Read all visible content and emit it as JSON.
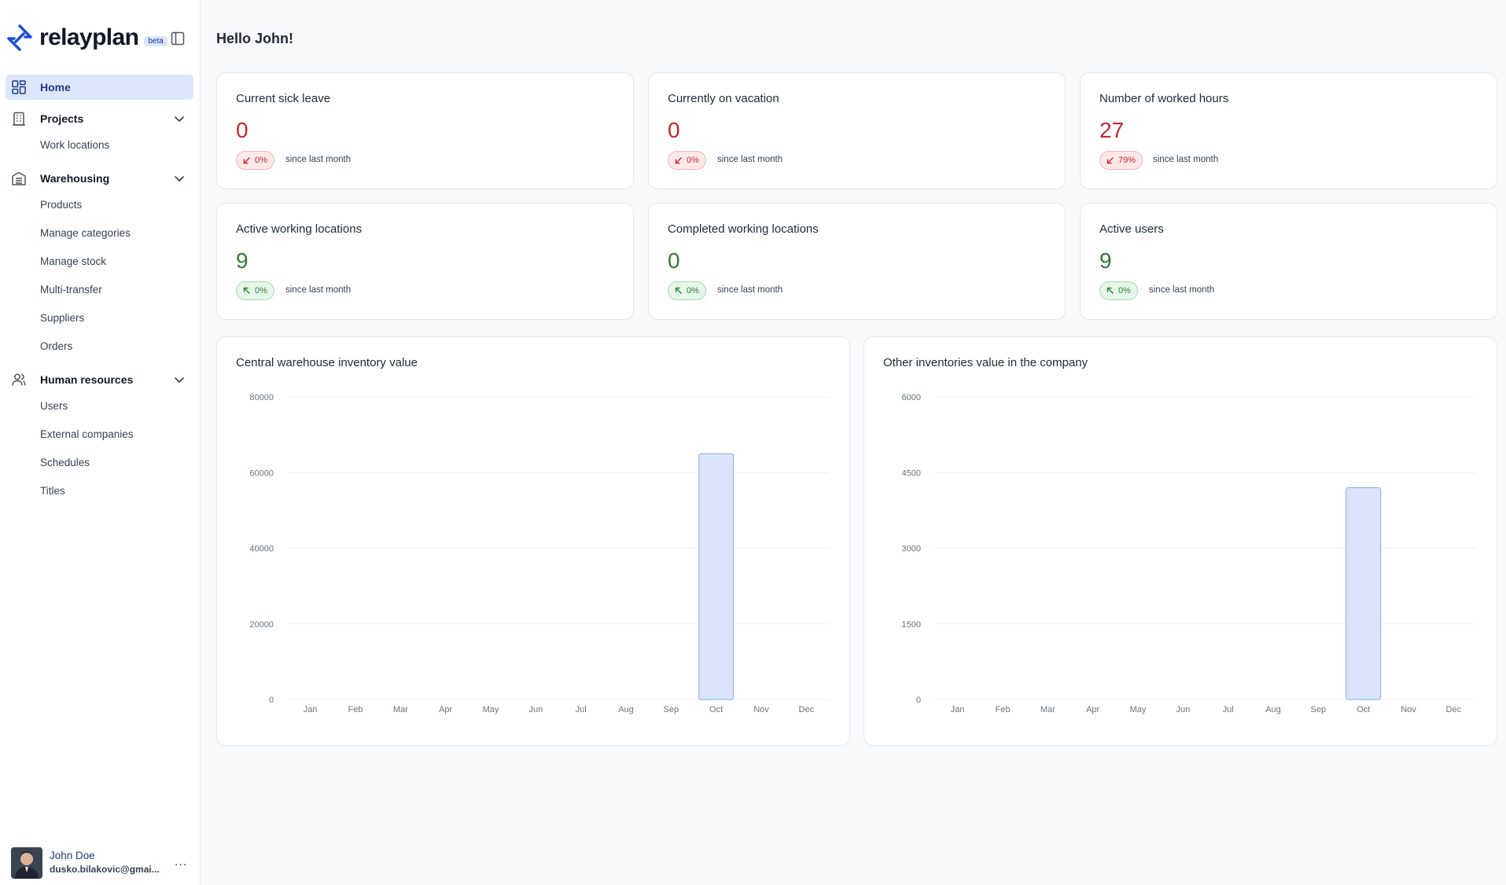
{
  "sidebar": {
    "brand": "relayplan",
    "beta": "beta",
    "nav": {
      "home": "Home",
      "projects": "Projects",
      "work_locations": "Work locations",
      "warehousing": "Warehousing",
      "products": "Products",
      "manage_categories": "Manage categories",
      "manage_stock": "Manage stock",
      "multi_transfer": "Multi-transfer",
      "suppliers": "Suppliers",
      "orders": "Orders",
      "human_resources": "Human resources",
      "users": "Users",
      "external_companies": "External companies",
      "schedules": "Schedules",
      "titles": "Titles"
    },
    "user": {
      "name": "John Doe",
      "email": "dusko.bilakovic@gmai...",
      "more": "..."
    }
  },
  "main": {
    "greeting": "Hello John!",
    "stats": [
      {
        "title": "Current sick leave",
        "value": "0",
        "change": "0%",
        "since": "since last month",
        "trend": "down",
        "color": "#c62828"
      },
      {
        "title": "Currently on vacation",
        "value": "0",
        "change": "0%",
        "since": "since last month",
        "trend": "down",
        "color": "#c62828"
      },
      {
        "title": "Number of worked hours",
        "value": "27",
        "change": "79%",
        "since": "since last month",
        "trend": "down",
        "color": "#c62828"
      },
      {
        "title": "Active working locations",
        "value": "9",
        "change": "0%",
        "since": "since last month",
        "trend": "up",
        "color": "#2e7d32"
      },
      {
        "title": "Completed working locations",
        "value": "0",
        "change": "0%",
        "since": "since last month",
        "trend": "up",
        "color": "#2e7d32"
      },
      {
        "title": "Active users",
        "value": "9",
        "change": "0%",
        "since": "since last month",
        "trend": "up",
        "color": "#2e7d32"
      }
    ]
  },
  "colors": {
    "accent": "#1e3a8a",
    "active_bg": "#dce7fb",
    "bar_fill": "#dbe5fa",
    "bar_stroke": "#8ea8ee"
  },
  "chart_data": [
    {
      "type": "bar",
      "title": "Central warehouse inventory value",
      "categories": [
        "Jan",
        "Feb",
        "Mar",
        "Apr",
        "May",
        "Jun",
        "Jul",
        "Aug",
        "Sep",
        "Oct",
        "Nov",
        "Dec"
      ],
      "values": [
        0,
        0,
        0,
        0,
        0,
        0,
        0,
        0,
        0,
        65000,
        0,
        0
      ],
      "ylim": [
        0,
        80000
      ],
      "yticks": [
        "0",
        "20000",
        "40000",
        "60000",
        "80000"
      ],
      "grid": true
    },
    {
      "type": "bar",
      "title": "Other inventories value in the company",
      "categories": [
        "Jan",
        "Feb",
        "Mar",
        "Apr",
        "May",
        "Jun",
        "Jul",
        "Aug",
        "Sep",
        "Oct",
        "Nov",
        "Dec"
      ],
      "values": [
        0,
        0,
        0,
        0,
        0,
        0,
        0,
        0,
        0,
        4200,
        0,
        0
      ],
      "ylim": [
        0,
        6000
      ],
      "yticks": [
        "0",
        "1500",
        "3000",
        "4500",
        "6000"
      ],
      "grid": true
    }
  ]
}
